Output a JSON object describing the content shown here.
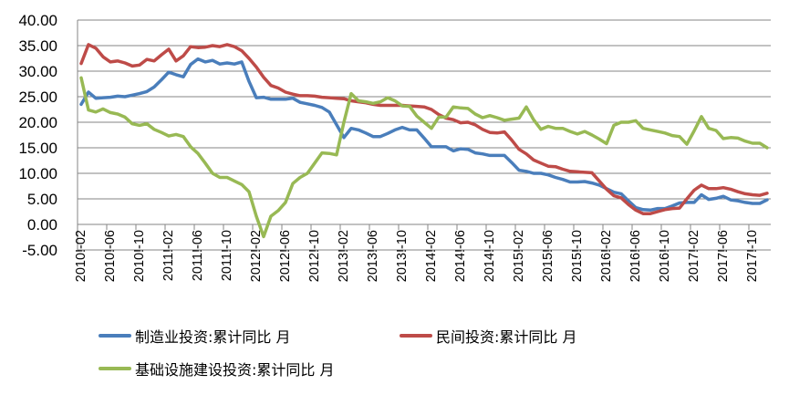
{
  "chart_data": {
    "type": "line",
    "title": "",
    "xlabel": "",
    "ylabel": "",
    "ylim": [
      -5,
      40
    ],
    "yticks": [
      "40.00",
      "35.00",
      "30.00",
      "25.00",
      "20.00",
      "15.00",
      "10.00",
      "5.00",
      "0.00",
      "-5.00"
    ],
    "ytick_values": [
      40,
      35,
      30,
      25,
      20,
      15,
      10,
      5,
      0,
      -5
    ],
    "x_start": "2010-02",
    "x_end": "2017-12",
    "xtick_labels": [
      "2010!-02",
      "2010!-06",
      "2010!-10",
      "2011!-02",
      "2011!-06",
      "2011!-10",
      "2012!-02",
      "2012!-06",
      "2012!-10",
      "2013!-02",
      "2013!-06",
      "2013!-10",
      "2014!-02",
      "2014!-06",
      "2014!-10",
      "2015!-02",
      "2015!-06",
      "2015!-10",
      "2016!-02",
      "2016!-06",
      "2016!-10",
      "2017!-02",
      "2017!-06",
      "2017!-10"
    ],
    "grid": true,
    "legend_position": "bottom",
    "series": [
      {
        "name": "制造业投资:累计同比 月",
        "color": "#4A7EBB",
        "values": [
          23.5,
          25.9,
          24.7,
          24.8,
          24.9,
          25.1,
          25.0,
          25.3,
          25.6,
          26.0,
          26.9,
          28.3,
          29.8,
          29.3,
          28.9,
          31.3,
          32.4,
          31.8,
          32.1,
          31.4,
          31.6,
          31.4,
          31.8,
          28.0,
          24.8,
          24.9,
          24.5,
          24.5,
          24.5,
          24.7,
          23.9,
          23.6,
          23.3,
          22.9,
          22.0,
          19.5,
          17.0,
          18.8,
          18.5,
          17.9,
          17.2,
          17.2,
          17.8,
          18.5,
          19.0,
          18.5,
          18.5,
          16.9,
          15.2,
          15.2,
          15.2,
          14.4,
          14.8,
          14.7,
          14.0,
          13.8,
          13.5,
          13.5,
          13.5,
          12.1,
          10.6,
          10.4,
          10.0,
          10.0,
          9.7,
          9.2,
          8.8,
          8.3,
          8.3,
          8.4,
          8.1,
          7.7,
          7.0,
          6.3,
          6.0,
          4.6,
          3.3,
          2.9,
          2.8,
          3.1,
          3.1,
          3.6,
          4.2,
          4.3,
          4.3,
          5.8,
          4.9,
          5.1,
          5.5,
          4.8,
          4.6,
          4.3,
          4.1,
          4.1,
          4.8
        ]
      },
      {
        "name": "民间投资:累计同比 月",
        "color": "#BE4B48",
        "values": [
          31.5,
          35.2,
          34.5,
          32.8,
          31.8,
          32.0,
          31.6,
          31.0,
          31.2,
          32.3,
          32.0,
          33.2,
          34.3,
          32.0,
          33.0,
          34.8,
          34.6,
          34.7,
          35.0,
          34.8,
          35.2,
          34.8,
          34.0,
          32.5,
          30.8,
          28.8,
          27.2,
          26.7,
          25.9,
          25.5,
          25.2,
          25.2,
          25.1,
          24.9,
          24.8,
          24.7,
          24.6,
          24.2,
          24.0,
          23.8,
          23.5,
          23.3,
          23.3,
          23.3,
          23.3,
          23.2,
          23.1,
          23.0,
          22.5,
          21.5,
          20.8,
          20.5,
          19.9,
          20.0,
          19.5,
          18.6,
          18.0,
          17.9,
          18.1,
          16.5,
          14.7,
          13.8,
          12.6,
          12.0,
          11.4,
          11.3,
          10.8,
          10.4,
          10.3,
          10.2,
          10.1,
          8.5,
          6.9,
          5.6,
          5.2,
          3.9,
          2.8,
          2.1,
          2.1,
          2.5,
          2.9,
          3.1,
          3.2,
          5.0,
          6.7,
          7.7,
          7.0,
          7.0,
          7.2,
          6.9,
          6.4,
          6.0,
          5.8,
          5.7,
          6.1
        ]
      },
      {
        "name": "基础设施建设投资:累计同比 月",
        "color": "#98B954",
        "values": [
          28.7,
          22.4,
          22.0,
          22.6,
          21.9,
          21.6,
          21.0,
          19.7,
          19.4,
          19.7,
          18.6,
          18.0,
          17.3,
          17.6,
          17.2,
          15.2,
          13.9,
          12.0,
          10.0,
          9.2,
          9.2,
          8.5,
          7.8,
          6.4,
          1.6,
          -2.4,
          1.6,
          2.7,
          4.3,
          8.0,
          9.2,
          10.0,
          12.0,
          14.0,
          13.9,
          13.6,
          20.0,
          25.6,
          24.2,
          24.0,
          23.7,
          24.0,
          24.8,
          24.2,
          23.2,
          23.1,
          21.2,
          20.0,
          18.8,
          21.0,
          21.0,
          23.0,
          22.8,
          22.7,
          21.6,
          20.9,
          21.3,
          20.9,
          20.4,
          20.6,
          20.8,
          23.0,
          20.5,
          18.6,
          19.2,
          18.8,
          18.8,
          18.2,
          17.7,
          18.2,
          17.5,
          16.7,
          15.8,
          19.4,
          20.0,
          20.0,
          20.3,
          18.8,
          18.5,
          18.2,
          17.9,
          17.4,
          17.2,
          15.7,
          18.3,
          21.1,
          18.8,
          18.4,
          16.8,
          17.0,
          16.9,
          16.3,
          15.9,
          15.9,
          15.0
        ]
      }
    ]
  }
}
